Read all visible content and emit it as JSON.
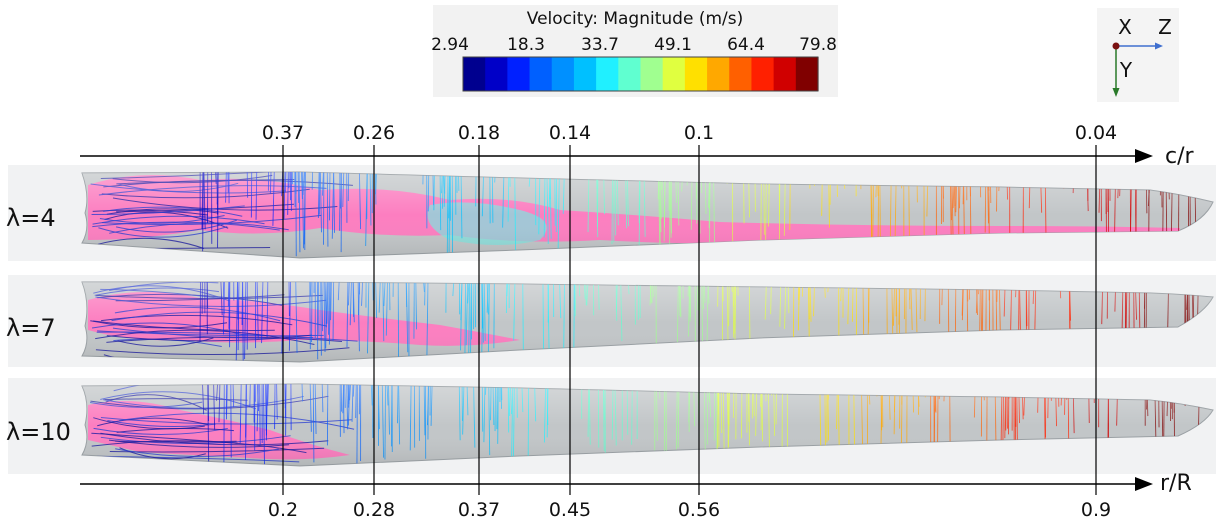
{
  "colorbar": {
    "title": "Velocity: Magnitude (m/s)",
    "ticks": [
      "2.94",
      "18.3",
      "33.7",
      "49.1",
      "64.4",
      "79.8"
    ],
    "colors": [
      "#00008f",
      "#0000c8",
      "#0020ff",
      "#0060ff",
      "#0090ff",
      "#00c0ff",
      "#20f0ff",
      "#60ffd0",
      "#a0ff90",
      "#e0ff40",
      "#ffe000",
      "#ffa800",
      "#ff6000",
      "#ff2000",
      "#d00000",
      "#800000"
    ]
  },
  "triad": {
    "x_label": "X",
    "y_label": "Y",
    "z_label": "Z"
  },
  "top_axis": {
    "label": "c/r",
    "ticks": [
      "0.37",
      "0.26",
      "0.18",
      "0.14",
      "0.1",
      "0.04"
    ]
  },
  "bottom_axis": {
    "label": "r/R",
    "ticks": [
      "0.2",
      "0.28",
      "0.37",
      "0.45",
      "0.56",
      "0.9"
    ]
  },
  "blades": [
    {
      "label": "λ=4"
    },
    {
      "label": "λ=7"
    },
    {
      "label": "λ=10"
    }
  ],
  "colors": {
    "blade_surface": "#c2c6c8",
    "separation": "#ff7ac0",
    "panel_bg": "#f1f2f3"
  }
}
